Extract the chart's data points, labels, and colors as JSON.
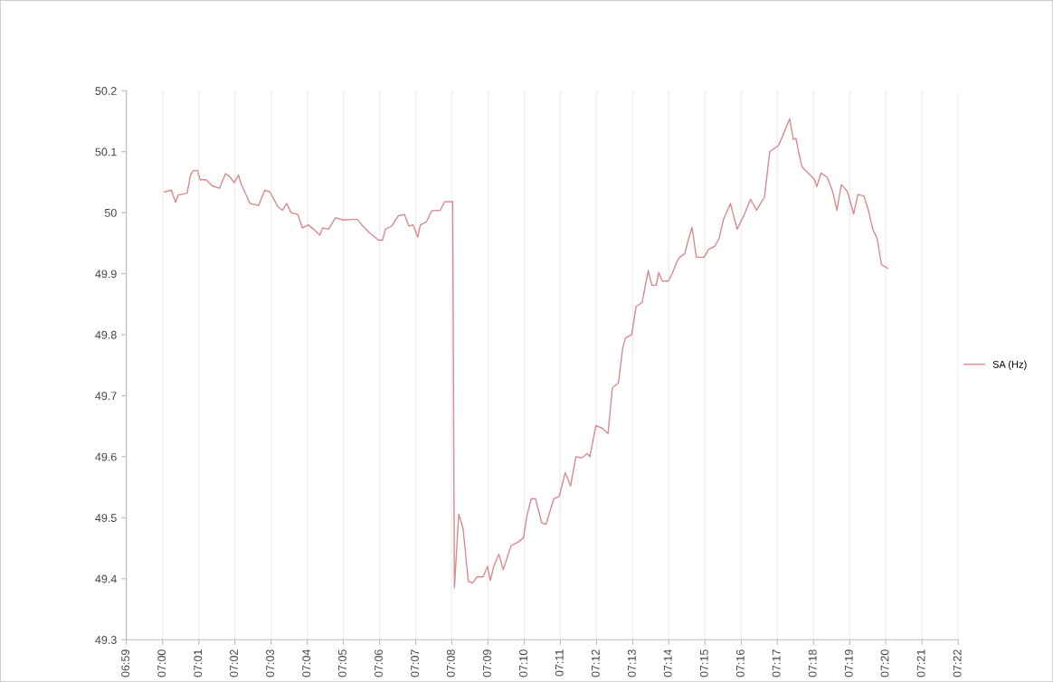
{
  "chart_data": {
    "type": "line",
    "x": [
      7.0008,
      7.004,
      7.006,
      7.0072,
      7.0113,
      7.0129,
      7.0141,
      7.0161,
      7.0173,
      7.0201,
      7.0229,
      7.0262,
      7.029,
      7.031,
      7.033,
      7.035,
      7.0362,
      7.0403,
      7.0443,
      7.0471,
      7.0495,
      7.0531,
      7.0552,
      7.0572,
      7.0592,
      7.0624,
      7.0644,
      7.0672,
      7.0696,
      7.0725,
      7.0737,
      7.0765,
      7.0797,
      7.0833,
      7.0873,
      7.0898,
      7.0918,
      7.0954,
      7.0995,
      7.1014,
      7.1027,
      7.1055,
      7.1087,
      7.1115,
      7.1135,
      7.1155,
      7.1176,
      7.1188,
      7.1216,
      7.124,
      7.128,
      7.13,
      7.1329,
      7.1337,
      7.1345,
      7.1365,
      7.1385,
      7.1409,
      7.1429,
      7.1449,
      7.1477,
      7.1498,
      7.151,
      7.1526,
      7.155,
      7.157,
      7.1606,
      7.1638,
      7.1663,
      7.1679,
      7.1699,
      7.1719,
      7.1747,
      7.1767,
      7.1803,
      7.1828,
      7.1856,
      7.188,
      7.1905,
      7.1932,
      7.1957,
      7.1969,
      7.1997,
      7.2025,
      7.2053,
      7.2073,
      7.2101,
      7.2121,
      7.2134,
      7.2162,
      7.2182,
      7.221,
      7.2238,
      7.2255,
      7.2275,
      7.2287,
      7.2303,
      7.2331,
      7.2351,
      7.2371,
      7.2383,
      7.2407,
      7.242,
      7.244,
      7.246,
      7.2496,
      7.2516,
      7.2545,
      7.2565,
      7.2585,
      7.26,
      7.2617,
      7.2648,
      7.2677,
      7.271,
      7.2738,
      7.2762,
      7.2774,
      7.2798,
      7.2838,
      7.2858,
      7.289,
      7.2907,
      7.2919,
      7.2931,
      7.2947,
      7.2975,
      7.3003,
      7.3015,
      7.3035,
      7.3063,
      7.3088,
      7.3108,
      7.3128,
      7.3156,
      7.3185,
      7.3205,
      7.3233,
      7.3253,
      7.3273,
      7.3293,
      7.3313,
      7.3342
    ],
    "series": [
      {
        "name": "SA (Hz)",
        "color": "#d98a8c",
        "values": [
          50.034,
          50.037,
          50.017,
          50.029,
          50.032,
          50.062,
          50.069,
          50.069,
          50.054,
          50.054,
          50.044,
          50.04,
          50.064,
          50.059,
          50.049,
          50.062,
          50.047,
          50.015,
          50.012,
          50.037,
          50.034,
          50.01,
          50.004,
          50.015,
          50.0,
          49.997,
          49.975,
          49.98,
          49.973,
          49.963,
          49.975,
          49.973,
          49.992,
          49.988,
          49.989,
          49.989,
          49.98,
          49.967,
          49.955,
          49.955,
          49.973,
          49.978,
          49.995,
          49.997,
          49.978,
          49.98,
          49.96,
          49.98,
          49.985,
          50.003,
          50.004,
          50.018,
          50.018,
          50.018,
          49.385,
          49.506,
          49.482,
          49.396,
          49.393,
          49.403,
          49.403,
          49.42,
          49.397,
          49.42,
          49.44,
          49.415,
          49.454,
          49.46,
          49.467,
          49.503,
          49.531,
          49.531,
          49.492,
          49.489,
          49.531,
          49.535,
          49.574,
          49.552,
          49.6,
          49.598,
          49.605,
          49.6,
          49.651,
          49.647,
          49.638,
          49.713,
          49.721,
          49.779,
          49.795,
          49.8,
          49.846,
          49.853,
          49.905,
          49.881,
          49.881,
          49.902,
          49.888,
          49.888,
          49.902,
          49.92,
          49.927,
          49.933,
          49.952,
          49.976,
          49.927,
          49.927,
          49.94,
          49.945,
          49.958,
          49.989,
          50.001,
          50.015,
          49.973,
          49.994,
          50.022,
          50.004,
          50.019,
          50.025,
          50.1,
          50.11,
          50.126,
          50.154,
          50.12,
          50.122,
          50.1,
          50.075,
          50.065,
          50.055,
          50.043,
          50.065,
          50.058,
          50.035,
          50.004,
          50.046,
          50.035,
          49.998,
          50.03,
          50.027,
          50.004,
          49.973,
          49.958,
          49.915,
          49.909
        ]
      }
    ],
    "xlim": [
      6.9833,
      7.3667
    ],
    "xticks": [
      {
        "value": 6.9833,
        "label": "06:59"
      },
      {
        "value": 7.0,
        "label": "07:00"
      },
      {
        "value": 7.0167,
        "label": "07:01"
      },
      {
        "value": 7.0333,
        "label": "07:02"
      },
      {
        "value": 7.05,
        "label": "07:03"
      },
      {
        "value": 7.0667,
        "label": "07:04"
      },
      {
        "value": 7.0833,
        "label": "07:05"
      },
      {
        "value": 7.1,
        "label": "07:06"
      },
      {
        "value": 7.1167,
        "label": "07:07"
      },
      {
        "value": 7.1333,
        "label": "07:08"
      },
      {
        "value": 7.15,
        "label": "07:09"
      },
      {
        "value": 7.1667,
        "label": "07:10"
      },
      {
        "value": 7.1833,
        "label": "07:11"
      },
      {
        "value": 7.2,
        "label": "07:12"
      },
      {
        "value": 7.2167,
        "label": "07:13"
      },
      {
        "value": 7.2333,
        "label": "07:14"
      },
      {
        "value": 7.25,
        "label": "07:15"
      },
      {
        "value": 7.2667,
        "label": "07:16"
      },
      {
        "value": 7.2833,
        "label": "07:17"
      },
      {
        "value": 7.3,
        "label": "07:18"
      },
      {
        "value": 7.3167,
        "label": "07:19"
      },
      {
        "value": 7.3333,
        "label": "07:20"
      },
      {
        "value": 7.35,
        "label": "07:21"
      },
      {
        "value": 7.3667,
        "label": "07:22"
      }
    ],
    "ylim": [
      49.3,
      50.2
    ],
    "yticks": [
      49.3,
      49.4,
      49.5,
      49.6,
      49.7,
      49.8,
      49.9,
      50,
      50.1,
      50.2
    ],
    "grid": "x",
    "legend": "right",
    "marker": "none",
    "line_style": "solid"
  }
}
